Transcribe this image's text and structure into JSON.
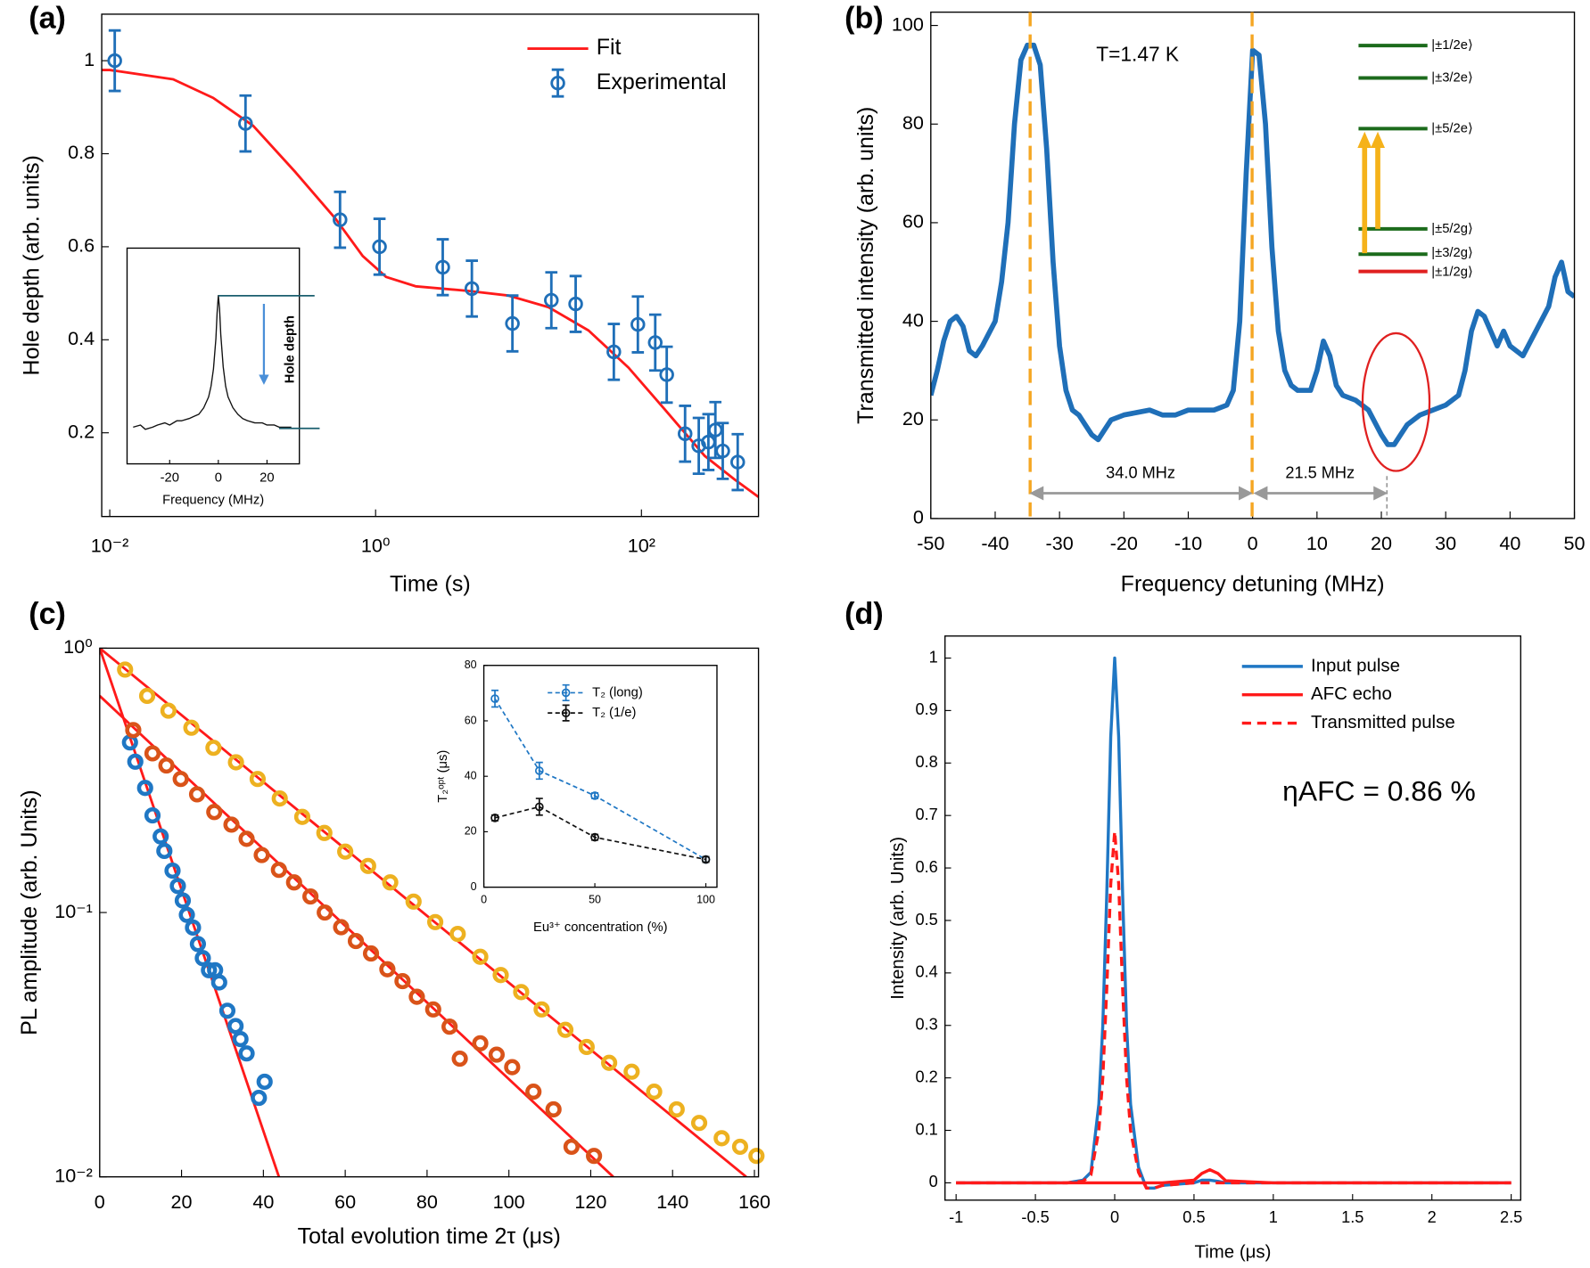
{
  "chart_data": [
    {
      "type": "line",
      "panel": "(a)",
      "xlabel": "Time (s)",
      "ylabel": "Hole depth (arb. units)",
      "xscale": "log",
      "xlim": [
        0.0087,
        760
      ],
      "ylim": [
        0.02,
        1.1
      ],
      "xticks": [
        {
          "value": 0.01,
          "label": "10⁻²"
        },
        {
          "value": 1,
          "label": "10⁰"
        },
        {
          "value": 100,
          "label": "10²"
        }
      ],
      "yticks": [
        0.2,
        0.4,
        0.6,
        0.8,
        1
      ],
      "legend": "upper right",
      "series": [
        {
          "name": "Fit",
          "kind": "line",
          "color": "#ff1a1a",
          "x": [
            0.0087,
            0.01,
            0.03,
            0.06,
            0.12,
            0.25,
            0.5,
            0.8,
            1.2,
            2,
            5,
            10,
            20,
            40,
            80,
            150,
            300,
            500,
            760
          ],
          "values": [
            0.98,
            0.98,
            0.96,
            0.92,
            0.86,
            0.76,
            0.66,
            0.58,
            0.535,
            0.515,
            0.505,
            0.495,
            0.47,
            0.42,
            0.34,
            0.25,
            0.15,
            0.1,
            0.062
          ]
        },
        {
          "name": "Experimental",
          "kind": "scatter",
          "color": "#1f6fb8",
          "x": [
            0.0109,
            0.105,
            0.54,
            1.07,
            3.2,
            5.3,
            10.7,
            21,
            32,
            62,
            94,
            127,
            155,
            213,
            270,
            319,
            360,
            409,
            530
          ],
          "values": [
            1.0,
            0.865,
            0.658,
            0.6,
            0.556,
            0.51,
            0.435,
            0.485,
            0.477,
            0.374,
            0.433,
            0.394,
            0.325,
            0.198,
            0.172,
            0.18,
            0.206,
            0.161,
            0.137
          ],
          "errors": [
            0.065,
            0.06,
            0.06,
            0.06,
            0.06,
            0.06,
            0.06,
            0.06,
            0.06,
            0.06,
            0.06,
            0.06,
            0.06,
            0.06,
            0.06,
            0.06,
            0.06,
            0.06,
            0.06
          ]
        }
      ]
    },
    {
      "type": "line",
      "xlabel": "Frequency (MHz)",
      "xlim": [
        -37.5,
        33.3
      ],
      "ylim": [
        0,
        1
      ],
      "xticks": [
        -20,
        0,
        20
      ],
      "annotations": [
        "Hole depth"
      ],
      "series": [
        {
          "kind": "line",
          "color": "#111111",
          "x": [
            -35,
            -32,
            -30,
            -27,
            -25,
            -22,
            -20,
            -17,
            -15,
            -12,
            -10,
            -8,
            -6,
            -4,
            -3,
            -2,
            -1,
            -0.5,
            0,
            0.5,
            1,
            2,
            3,
            4,
            6,
            8,
            10,
            12,
            15,
            18,
            20,
            23,
            25,
            28,
            30
          ],
          "values": [
            0.17,
            0.18,
            0.16,
            0.17,
            0.18,
            0.19,
            0.18,
            0.2,
            0.2,
            0.21,
            0.22,
            0.23,
            0.26,
            0.31,
            0.36,
            0.44,
            0.58,
            0.7,
            0.78,
            0.72,
            0.6,
            0.45,
            0.36,
            0.31,
            0.26,
            0.23,
            0.21,
            0.2,
            0.19,
            0.19,
            0.18,
            0.18,
            0.17,
            0.17,
            0.17
          ]
        }
      ]
    },
    {
      "type": "line",
      "panel": "(b)",
      "xlabel": "Frequency detuning (MHz)",
      "ylabel": "Transmitted intensity (arb. units)",
      "xlim": [
        -50,
        50
      ],
      "ylim": [
        0,
        102.7
      ],
      "xticks": [
        -50,
        -40,
        -30,
        -20,
        -10,
        0,
        10,
        20,
        30,
        40,
        50
      ],
      "yticks": [
        0,
        20,
        40,
        60,
        80,
        100
      ],
      "annotations": [
        "T=1.47 K",
        "34.0 MHz",
        "21.5 MHz",
        "|±1/2e⟩",
        "|±3/2e⟩",
        "|±5/2e⟩",
        "|±5/2g⟩",
        "|±3/2g⟩",
        "|±1/2g⟩"
      ],
      "x": [
        -50,
        -49,
        -48,
        -47,
        -46,
        -45,
        -44,
        -43,
        -42,
        -40,
        -39,
        -38,
        -37,
        -36,
        -35,
        -34,
        -33,
        -32,
        -31,
        -30,
        -29,
        -28,
        -27,
        -26,
        -25,
        -24,
        -23,
        -22,
        -20,
        -18,
        -16,
        -14,
        -12,
        -10,
        -8,
        -6,
        -4,
        -3,
        -2,
        -1,
        0,
        1,
        2,
        3,
        4,
        5,
        6,
        7,
        8,
        9,
        10,
        11,
        12,
        13,
        14,
        16,
        18,
        20,
        21,
        22,
        23,
        24,
        26,
        28,
        30,
        32,
        33,
        34,
        35,
        36,
        38,
        39,
        40,
        42,
        44,
        46,
        47,
        48,
        49,
        50
      ],
      "series": [
        {
          "kind": "line",
          "color": "#1f6fb8",
          "values": [
            25,
            30,
            36,
            40,
            41,
            39,
            34,
            33,
            35,
            40,
            48,
            60,
            80,
            93,
            96,
            96,
            92,
            75,
            52,
            35,
            26,
            22,
            21,
            19,
            17,
            16,
            18,
            20,
            21,
            21.5,
            22,
            21,
            21,
            22,
            22,
            22,
            23,
            26,
            40,
            70,
            95,
            94,
            80,
            55,
            38,
            30,
            27,
            26,
            26,
            26,
            30,
            36,
            33,
            27,
            25,
            24,
            22,
            17,
            15,
            15,
            17,
            19,
            21,
            22,
            23,
            25,
            30,
            38,
            42,
            41,
            35,
            38,
            35,
            33,
            38,
            43,
            49,
            52,
            46,
            45
          ]
        }
      ]
    },
    {
      "type": "scatter",
      "panel": "(c)",
      "xlabel": "Total evolution time 2τ (μs)",
      "ylabel": "PL amplitude (arb. Units)",
      "yscale": "log",
      "xlim": [
        0,
        161
      ],
      "ylim": [
        0.01,
        1
      ],
      "xticks": [
        0,
        20,
        40,
        60,
        80,
        100,
        120,
        140,
        160
      ],
      "yticks": [
        {
          "value": 0.01,
          "label": "10⁻²"
        },
        {
          "value": 0.1,
          "label": "10⁻¹"
        },
        {
          "value": 1,
          "label": "10⁰"
        }
      ],
      "series": [
        {
          "kind": "line",
          "color": "#ff1a1a",
          "x": [
            0,
            43.8
          ],
          "values": [
            1,
            0.01
          ]
        },
        {
          "kind": "line",
          "color": "#ff1a1a",
          "x": [
            0,
            125.5
          ],
          "values": [
            0.66,
            0.01
          ]
        },
        {
          "kind": "line",
          "color": "#ff1a1a",
          "x": [
            0,
            158
          ],
          "values": [
            1,
            0.01
          ]
        },
        {
          "kind": "scatter",
          "color": "#1f77c4",
          "x": [
            7.4,
            8.7,
            11.1,
            12.9,
            14.9,
            15.8,
            17.8,
            19.1,
            20.3,
            21.3,
            22.8,
            24.0,
            25.2,
            26.7,
            28.2,
            29.2,
            31.2,
            33.2,
            34.4,
            35.9,
            38.9,
            40.3
          ],
          "values": [
            0.44,
            0.372,
            0.296,
            0.233,
            0.194,
            0.171,
            0.144,
            0.126,
            0.111,
            0.098,
            0.0877,
            0.076,
            0.0672,
            0.0605,
            0.0605,
            0.0544,
            0.0425,
            0.0372,
            0.0332,
            0.0293,
            0.0199,
            0.0229
          ]
        },
        {
          "kind": "scatter",
          "color": "#d95319",
          "x": [
            8.2,
            12.9,
            16.3,
            19.8,
            23.8,
            28,
            32.2,
            35.9,
            39.6,
            43.8,
            47.5,
            51.5,
            55,
            59,
            62.6,
            66.3,
            70.3,
            74,
            77.5,
            81.5,
            85.5,
            88,
            93,
            97,
            100.8,
            106,
            110.9,
            115.3,
            120.8
          ],
          "values": [
            0.49,
            0.4,
            0.36,
            0.32,
            0.28,
            0.24,
            0.215,
            0.19,
            0.165,
            0.145,
            0.13,
            0.115,
            0.1,
            0.088,
            0.078,
            0.07,
            0.061,
            0.055,
            0.048,
            0.043,
            0.037,
            0.028,
            0.032,
            0.029,
            0.026,
            0.021,
            0.018,
            0.013,
            0.012
          ]
        },
        {
          "kind": "scatter",
          "color": "#edb120",
          "x": [
            6.2,
            11.6,
            16.8,
            22.4,
            27.8,
            33.3,
            38.6,
            44,
            49.5,
            54.9,
            60,
            65.6,
            71,
            76.7,
            82,
            87.5,
            93,
            98,
            103,
            108,
            113.8,
            119,
            124.5,
            130,
            135.5,
            141,
            146.5,
            152,
            156.5,
            160.5
          ],
          "values": [
            0.83,
            0.66,
            0.58,
            0.5,
            0.42,
            0.37,
            0.32,
            0.27,
            0.23,
            0.2,
            0.17,
            0.15,
            0.13,
            0.11,
            0.092,
            0.083,
            0.068,
            0.058,
            0.05,
            0.043,
            0.036,
            0.031,
            0.027,
            0.025,
            0.021,
            0.018,
            0.016,
            0.014,
            0.013,
            0.012
          ]
        }
      ]
    },
    {
      "type": "line",
      "xlabel": "Eu³⁺ concentration (%)",
      "ylabel": "T₂ᵒᵖᵗ (μs)",
      "xlim": [
        0,
        105
      ],
      "ylim": [
        0,
        80
      ],
      "xticks": [
        0,
        50,
        100
      ],
      "yticks": [
        0,
        20,
        40,
        60,
        80
      ],
      "legend": "upper right",
      "x": [
        5,
        25,
        50,
        100
      ],
      "series": [
        {
          "name": "T₂ (long)",
          "kind": "both",
          "dash": "dashed",
          "color": "#1f77c4",
          "values": [
            68,
            42,
            33,
            10
          ],
          "errors": [
            3,
            3,
            1,
            1
          ]
        },
        {
          "name": "T₂ (1/e)",
          "kind": "both",
          "dash": "dashed",
          "color": "#111111",
          "values": [
            25,
            29,
            18,
            10
          ],
          "errors": [
            1,
            3,
            1,
            1
          ]
        }
      ]
    },
    {
      "type": "line",
      "panel": "(d)",
      "xlabel": "Time (μs)",
      "ylabel": "Intensity (arb. Units)",
      "xlim": [
        -1.07,
        2.56
      ],
      "ylim": [
        -0.033,
        1.042
      ],
      "xticks": [
        -1,
        -0.5,
        0,
        0.5,
        1,
        1.5,
        2,
        2.5
      ],
      "yticks": [
        0,
        0.1,
        0.2,
        0.3,
        0.4,
        0.5,
        0.6,
        0.7,
        0.8,
        0.9,
        1
      ],
      "legend": "upper right",
      "annotations": [
        "ηAFC = 0.86 %"
      ],
      "x": [
        -1,
        -0.5,
        -0.3,
        -0.2,
        -0.15,
        -0.1,
        -0.075,
        -0.05,
        -0.025,
        0,
        0.025,
        0.05,
        0.075,
        0.1,
        0.15,
        0.2,
        0.25,
        0.3,
        0.5,
        0.55,
        0.6,
        0.65,
        0.7,
        1,
        1.5,
        2,
        2.5
      ],
      "series": [
        {
          "name": "Input pulse",
          "kind": "line",
          "color": "#1f77c4",
          "values": [
            0,
            0,
            0,
            0.005,
            0.02,
            0.15,
            0.3,
            0.55,
            0.85,
            1,
            0.85,
            0.55,
            0.3,
            0.15,
            0.03,
            -0.01,
            -0.01,
            -0.005,
            0,
            0.005,
            0.005,
            0.003,
            0,
            0,
            0,
            0,
            0
          ]
        },
        {
          "name": "AFC echo",
          "kind": "line",
          "color": "#ff1a1a",
          "values": [
            0,
            0,
            0,
            0,
            0,
            0,
            0,
            0,
            0,
            0,
            0,
            0,
            0,
            0,
            0,
            0,
            0,
            0,
            0.005,
            0.018,
            0.025,
            0.018,
            0.004,
            0,
            0,
            0,
            0
          ]
        },
        {
          "name": "Transmitted pulse",
          "kind": "line",
          "dash": "dashed",
          "color": "#ff1a1a",
          "values": [
            0,
            0,
            0,
            0.003,
            0.015,
            0.1,
            0.2,
            0.37,
            0.57,
            0.67,
            0.57,
            0.37,
            0.2,
            0.1,
            0.02,
            -0.01,
            -0.01,
            -0.005,
            0,
            0,
            0,
            0,
            0,
            0,
            0,
            0,
            0
          ]
        }
      ]
    }
  ]
}
